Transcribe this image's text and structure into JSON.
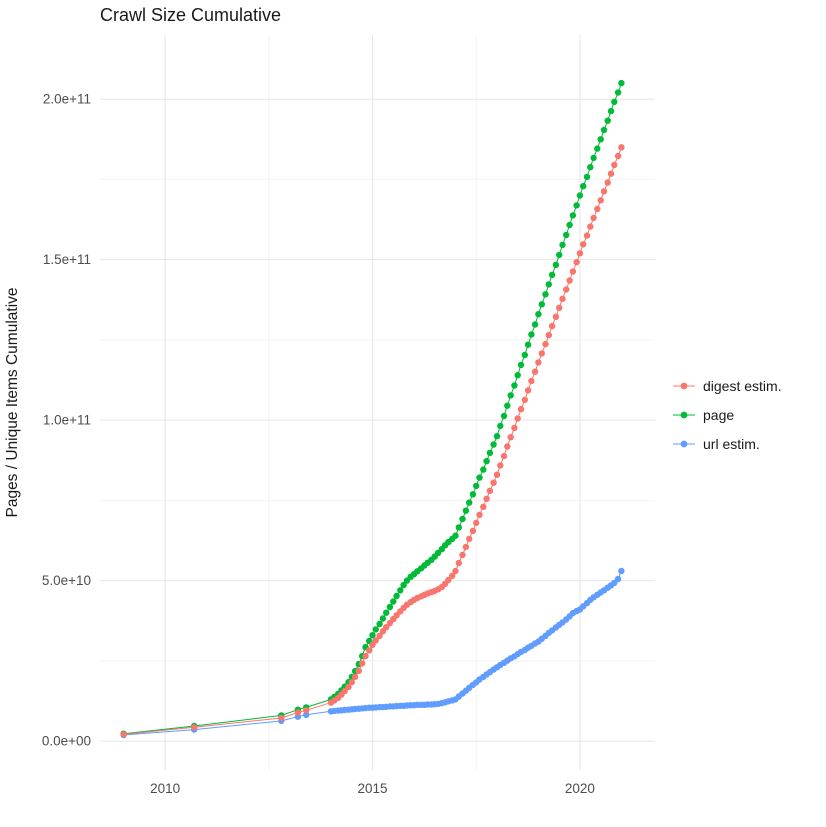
{
  "chart_data": {
    "type": "scatter",
    "title": "Crawl Size Cumulative",
    "xlabel": "",
    "ylabel": "Pages / Unique Items Cumulative",
    "y_unit": "values in 1e9 (billions) of pages / unique items",
    "grid": true,
    "legend_position": "right",
    "x_domain": [
      2008.43,
      2021.81
    ],
    "y_domain_1e9": [
      -9,
      220
    ],
    "x_ticks": [
      {
        "value": 2010,
        "label": "2010"
      },
      {
        "value": 2015,
        "label": "2015"
      },
      {
        "value": 2020,
        "label": "2020"
      }
    ],
    "y_ticks": [
      {
        "value": 0,
        "label": "0.0e+00"
      },
      {
        "value": 50,
        "label": "5.0e+10"
      },
      {
        "value": 100,
        "label": "1.0e+11"
      },
      {
        "value": 150,
        "label": "1.5e+11"
      },
      {
        "value": 200,
        "label": "2.0e+11"
      }
    ],
    "x_minor_ticks": [
      2012.5,
      2017.5
    ],
    "y_minor_ticks_1e9": [
      25,
      75,
      125,
      175
    ],
    "series": [
      {
        "name": "digest estim.",
        "color": "#F8766D",
        "points": [
          [
            2009.0,
            2.1
          ],
          [
            2010.7,
            4.3
          ],
          [
            2012.8,
            7.2
          ],
          [
            2013.2,
            8.9
          ],
          [
            2013.4,
            9.6
          ],
          [
            2014.0,
            12.0
          ],
          [
            2014.08,
            12.7
          ],
          [
            2014.17,
            13.5
          ],
          [
            2014.25,
            14.5
          ],
          [
            2014.33,
            15.6
          ],
          [
            2014.42,
            16.9
          ],
          [
            2014.5,
            18.4
          ],
          [
            2014.58,
            20.0
          ],
          [
            2014.67,
            21.9
          ],
          [
            2014.75,
            24.2
          ],
          [
            2014.83,
            26.5
          ],
          [
            2014.92,
            28.3
          ],
          [
            2015.0,
            30.0
          ],
          [
            2015.08,
            31.4
          ],
          [
            2015.17,
            32.8
          ],
          [
            2015.25,
            34.2
          ],
          [
            2015.33,
            35.5
          ],
          [
            2015.42,
            36.8
          ],
          [
            2015.5,
            38.0
          ],
          [
            2015.58,
            39.2
          ],
          [
            2015.67,
            40.4
          ],
          [
            2015.75,
            41.5
          ],
          [
            2015.83,
            42.5
          ],
          [
            2015.92,
            43.3
          ],
          [
            2016.0,
            44.0
          ],
          [
            2016.08,
            44.6
          ],
          [
            2016.17,
            45.1
          ],
          [
            2016.25,
            45.6
          ],
          [
            2016.33,
            46.0
          ],
          [
            2016.42,
            46.4
          ],
          [
            2016.5,
            46.8
          ],
          [
            2016.58,
            47.3
          ],
          [
            2016.67,
            48.0
          ],
          [
            2016.75,
            49.0
          ],
          [
            2016.83,
            50.2
          ],
          [
            2016.92,
            51.5
          ],
          [
            2017.0,
            53.0
          ],
          [
            2017.08,
            55.5
          ],
          [
            2017.17,
            58.0
          ],
          [
            2017.25,
            60.5
          ],
          [
            2017.33,
            63.0
          ],
          [
            2017.42,
            65.5
          ],
          [
            2017.5,
            68.0
          ],
          [
            2017.58,
            70.5
          ],
          [
            2017.67,
            73.0
          ],
          [
            2017.75,
            75.5
          ],
          [
            2017.83,
            78.0
          ],
          [
            2017.92,
            80.5
          ],
          [
            2018.0,
            83.0
          ],
          [
            2018.08,
            85.9
          ],
          [
            2018.17,
            88.8
          ],
          [
            2018.25,
            91.8
          ],
          [
            2018.33,
            94.7
          ],
          [
            2018.42,
            97.6
          ],
          [
            2018.5,
            100.5
          ],
          [
            2018.58,
            103.4
          ],
          [
            2018.67,
            106.3
          ],
          [
            2018.75,
            109.3
          ],
          [
            2018.83,
            112.2
          ],
          [
            2018.92,
            115.1
          ],
          [
            2019.0,
            118.0
          ],
          [
            2019.08,
            120.8
          ],
          [
            2019.17,
            123.7
          ],
          [
            2019.25,
            126.5
          ],
          [
            2019.33,
            129.3
          ],
          [
            2019.42,
            132.2
          ],
          [
            2019.5,
            135.0
          ],
          [
            2019.58,
            137.8
          ],
          [
            2019.67,
            140.7
          ],
          [
            2019.75,
            143.5
          ],
          [
            2019.83,
            146.3
          ],
          [
            2019.92,
            149.2
          ],
          [
            2020.0,
            152.0
          ],
          [
            2020.08,
            154.8
          ],
          [
            2020.17,
            157.5
          ],
          [
            2020.25,
            160.3
          ],
          [
            2020.33,
            163.0
          ],
          [
            2020.42,
            165.8
          ],
          [
            2020.5,
            168.5
          ],
          [
            2020.58,
            171.3
          ],
          [
            2020.67,
            174.0
          ],
          [
            2020.75,
            176.8
          ],
          [
            2020.83,
            179.5
          ],
          [
            2020.92,
            182.3
          ],
          [
            2021.0,
            185.0
          ]
        ]
      },
      {
        "name": "page",
        "color": "#00BA38",
        "points": [
          [
            2009.0,
            2.3
          ],
          [
            2010.7,
            4.7
          ],
          [
            2012.8,
            8.0
          ],
          [
            2013.2,
            9.8
          ],
          [
            2013.4,
            10.5
          ],
          [
            2014.0,
            13.0
          ],
          [
            2014.08,
            13.8
          ],
          [
            2014.17,
            14.7
          ],
          [
            2014.25,
            15.8
          ],
          [
            2014.33,
            17.0
          ],
          [
            2014.42,
            18.4
          ],
          [
            2014.5,
            20.0
          ],
          [
            2014.58,
            21.8
          ],
          [
            2014.67,
            24.0
          ],
          [
            2014.75,
            26.5
          ],
          [
            2014.83,
            29.3
          ],
          [
            2014.92,
            31.2
          ],
          [
            2015.0,
            33.0
          ],
          [
            2015.08,
            34.8
          ],
          [
            2015.17,
            36.5
          ],
          [
            2015.25,
            38.2
          ],
          [
            2015.33,
            40.0
          ],
          [
            2015.42,
            41.8
          ],
          [
            2015.5,
            43.5
          ],
          [
            2015.58,
            45.2
          ],
          [
            2015.67,
            47.0
          ],
          [
            2015.75,
            48.6
          ],
          [
            2015.83,
            50.0
          ],
          [
            2015.92,
            51.2
          ],
          [
            2016.0,
            52.0
          ],
          [
            2016.08,
            52.9
          ],
          [
            2016.17,
            53.8
          ],
          [
            2016.25,
            54.7
          ],
          [
            2016.33,
            55.6
          ],
          [
            2016.42,
            56.5
          ],
          [
            2016.5,
            57.5
          ],
          [
            2016.58,
            58.6
          ],
          [
            2016.67,
            59.8
          ],
          [
            2016.75,
            61.0
          ],
          [
            2016.83,
            62.0
          ],
          [
            2016.92,
            63.0
          ],
          [
            2017.0,
            64.0
          ],
          [
            2017.08,
            66.6
          ],
          [
            2017.17,
            69.2
          ],
          [
            2017.25,
            71.8
          ],
          [
            2017.33,
            74.3
          ],
          [
            2017.42,
            76.9
          ],
          [
            2017.5,
            79.5
          ],
          [
            2017.58,
            82.1
          ],
          [
            2017.67,
            84.6
          ],
          [
            2017.75,
            87.2
          ],
          [
            2017.83,
            89.8
          ],
          [
            2017.92,
            92.4
          ],
          [
            2018.0,
            95.0
          ],
          [
            2018.08,
            98.2
          ],
          [
            2018.17,
            101.3
          ],
          [
            2018.25,
            104.5
          ],
          [
            2018.33,
            107.7
          ],
          [
            2018.42,
            110.8
          ],
          [
            2018.5,
            114.0
          ],
          [
            2018.58,
            117.2
          ],
          [
            2018.67,
            120.3
          ],
          [
            2018.75,
            123.5
          ],
          [
            2018.83,
            126.7
          ],
          [
            2018.92,
            129.8
          ],
          [
            2019.0,
            133.0
          ],
          [
            2019.08,
            136.1
          ],
          [
            2019.17,
            139.2
          ],
          [
            2019.25,
            142.3
          ],
          [
            2019.33,
            145.3
          ],
          [
            2019.42,
            148.4
          ],
          [
            2019.5,
            151.5
          ],
          [
            2019.58,
            154.6
          ],
          [
            2019.67,
            157.7
          ],
          [
            2019.75,
            160.8
          ],
          [
            2019.83,
            163.8
          ],
          [
            2019.92,
            166.9
          ],
          [
            2020.0,
            170.0
          ],
          [
            2020.08,
            172.9
          ],
          [
            2020.17,
            175.8
          ],
          [
            2020.25,
            178.8
          ],
          [
            2020.33,
            181.7
          ],
          [
            2020.42,
            184.6
          ],
          [
            2020.5,
            187.5
          ],
          [
            2020.58,
            190.4
          ],
          [
            2020.67,
            193.3
          ],
          [
            2020.75,
            196.3
          ],
          [
            2020.83,
            199.2
          ],
          [
            2020.92,
            202.1
          ],
          [
            2021.0,
            205.0
          ]
        ]
      },
      {
        "name": "url estim.",
        "color": "#619CFF",
        "points": [
          [
            2009.0,
            1.9
          ],
          [
            2010.7,
            3.6
          ],
          [
            2012.8,
            6.3
          ],
          [
            2013.2,
            7.6
          ],
          [
            2013.4,
            8.2
          ],
          [
            2014.0,
            9.3
          ],
          [
            2014.08,
            9.4
          ],
          [
            2014.17,
            9.5
          ],
          [
            2014.25,
            9.6
          ],
          [
            2014.33,
            9.7
          ],
          [
            2014.42,
            9.8
          ],
          [
            2014.5,
            9.9
          ],
          [
            2014.58,
            10.0
          ],
          [
            2014.67,
            10.1
          ],
          [
            2014.75,
            10.2
          ],
          [
            2014.83,
            10.3
          ],
          [
            2014.92,
            10.4
          ],
          [
            2015.0,
            10.4
          ],
          [
            2015.08,
            10.5
          ],
          [
            2015.17,
            10.6
          ],
          [
            2015.25,
            10.6
          ],
          [
            2015.33,
            10.7
          ],
          [
            2015.42,
            10.8
          ],
          [
            2015.5,
            10.8
          ],
          [
            2015.58,
            10.9
          ],
          [
            2015.67,
            11.0
          ],
          [
            2015.75,
            11.0
          ],
          [
            2015.83,
            11.1
          ],
          [
            2015.92,
            11.2
          ],
          [
            2016.0,
            11.2
          ],
          [
            2016.08,
            11.3
          ],
          [
            2016.17,
            11.3
          ],
          [
            2016.25,
            11.3
          ],
          [
            2016.33,
            11.4
          ],
          [
            2016.42,
            11.4
          ],
          [
            2016.5,
            11.5
          ],
          [
            2016.58,
            11.6
          ],
          [
            2016.67,
            11.8
          ],
          [
            2016.75,
            12.1
          ],
          [
            2016.83,
            12.4
          ],
          [
            2016.92,
            12.7
          ],
          [
            2017.0,
            13.0
          ],
          [
            2017.08,
            13.9
          ],
          [
            2017.17,
            14.8
          ],
          [
            2017.25,
            15.7
          ],
          [
            2017.33,
            16.6
          ],
          [
            2017.42,
            17.5
          ],
          [
            2017.5,
            18.3
          ],
          [
            2017.58,
            19.2
          ],
          [
            2017.67,
            20.0
          ],
          [
            2017.75,
            20.8
          ],
          [
            2017.83,
            21.5
          ],
          [
            2017.92,
            22.3
          ],
          [
            2018.0,
            23.0
          ],
          [
            2018.08,
            23.7
          ],
          [
            2018.17,
            24.4
          ],
          [
            2018.25,
            25.1
          ],
          [
            2018.33,
            25.8
          ],
          [
            2018.42,
            26.4
          ],
          [
            2018.5,
            27.1
          ],
          [
            2018.58,
            27.8
          ],
          [
            2018.67,
            28.4
          ],
          [
            2018.75,
            29.1
          ],
          [
            2018.83,
            29.7
          ],
          [
            2018.92,
            30.4
          ],
          [
            2019.0,
            31.0
          ],
          [
            2019.08,
            31.9
          ],
          [
            2019.17,
            32.8
          ],
          [
            2019.25,
            33.7
          ],
          [
            2019.33,
            34.5
          ],
          [
            2019.42,
            35.4
          ],
          [
            2019.5,
            36.2
          ],
          [
            2019.58,
            37.0
          ],
          [
            2019.67,
            37.9
          ],
          [
            2019.75,
            38.9
          ],
          [
            2019.83,
            39.9
          ],
          [
            2019.92,
            40.5
          ],
          [
            2020.0,
            41.0
          ],
          [
            2020.08,
            42.0
          ],
          [
            2020.17,
            43.0
          ],
          [
            2020.25,
            44.0
          ],
          [
            2020.33,
            44.8
          ],
          [
            2020.42,
            45.6
          ],
          [
            2020.5,
            46.3
          ],
          [
            2020.58,
            47.0
          ],
          [
            2020.67,
            47.8
          ],
          [
            2020.75,
            48.5
          ],
          [
            2020.83,
            49.3
          ],
          [
            2020.92,
            50.5
          ],
          [
            2021.0,
            53.0
          ]
        ]
      }
    ]
  }
}
